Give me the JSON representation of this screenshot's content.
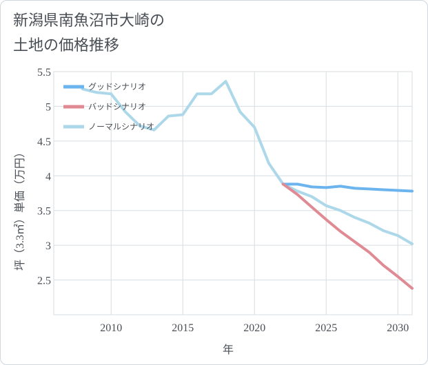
{
  "chart_data": {
    "type": "line",
    "title": [
      "新潟県南魚沼市大崎の",
      "土地の価格推移"
    ],
    "xlabel": "年",
    "ylabel": "坪（3.3㎡）単価（万円）",
    "xlim": [
      2006,
      2031
    ],
    "ylim": [
      2.0,
      5.5
    ],
    "xticks": [
      2010,
      2015,
      2020,
      2025,
      2030
    ],
    "yticks": [
      2.5,
      3,
      3.5,
      4,
      4.5,
      5,
      5.5
    ],
    "grid": true,
    "legend_position": "top-left",
    "series": [
      {
        "name": "グッドシナリオ",
        "color": "#6cb4ee",
        "x": [
          2022,
          2023,
          2024,
          2025,
          2026,
          2027,
          2028,
          2029,
          2030,
          2031
        ],
        "y": [
          3.88,
          3.88,
          3.84,
          3.83,
          3.85,
          3.82,
          3.81,
          3.8,
          3.79,
          3.78
        ]
      },
      {
        "name": "バッドシナリオ",
        "color": "#e08a94",
        "x": [
          2022,
          2023,
          2024,
          2025,
          2026,
          2027,
          2028,
          2029,
          2030,
          2031
        ],
        "y": [
          3.88,
          3.73,
          3.55,
          3.37,
          3.2,
          3.05,
          2.9,
          2.71,
          2.55,
          2.38
        ]
      },
      {
        "name": "ノーマルシナリオ",
        "color": "#add8ea",
        "x": [
          2008,
          2009,
          2010,
          2011,
          2012,
          2013,
          2014,
          2015,
          2016,
          2017,
          2018,
          2019,
          2020,
          2021,
          2022,
          2023,
          2024,
          2025,
          2026,
          2027,
          2028,
          2029,
          2030,
          2031
        ],
        "y": [
          5.25,
          5.2,
          5.18,
          4.92,
          4.72,
          4.66,
          4.86,
          4.88,
          5.18,
          5.18,
          5.36,
          4.92,
          4.7,
          4.18,
          3.88,
          3.78,
          3.7,
          3.57,
          3.5,
          3.4,
          3.32,
          3.21,
          3.14,
          3.02
        ]
      }
    ]
  }
}
